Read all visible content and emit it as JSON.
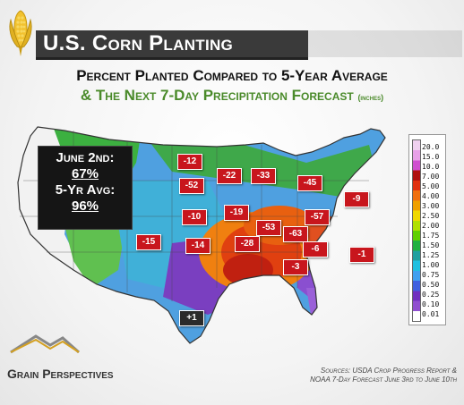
{
  "header": {
    "title": "U.S. Corn Planting",
    "subtitle_line1": "Percent Planted Compared to 5-Year Average",
    "subtitle_line2": "& The Next 7-Day Precipitation Forecast",
    "subtitle_unit": "(inches)"
  },
  "infobox": {
    "label1": "June 2nd:",
    "value1": "67%",
    "label2": "5-Yr Avg:",
    "value2": "96%"
  },
  "state_values": [
    {
      "value": "-12",
      "style": "red"
    },
    {
      "value": "-22",
      "style": "red"
    },
    {
      "value": "-33",
      "style": "red"
    },
    {
      "value": "-45",
      "style": "red"
    },
    {
      "value": "-52",
      "style": "red"
    },
    {
      "value": "-9",
      "style": "red"
    },
    {
      "value": "-10",
      "style": "red"
    },
    {
      "value": "-19",
      "style": "red"
    },
    {
      "value": "-57",
      "style": "red"
    },
    {
      "value": "-53",
      "style": "red"
    },
    {
      "value": "-63",
      "style": "red"
    },
    {
      "value": "-15",
      "style": "red"
    },
    {
      "value": "-14",
      "style": "red"
    },
    {
      "value": "-28",
      "style": "red"
    },
    {
      "value": "-6",
      "style": "red"
    },
    {
      "value": "-1",
      "style": "red"
    },
    {
      "value": "-3",
      "style": "red"
    },
    {
      "value": "+1",
      "style": "dark"
    }
  ],
  "legend": {
    "labels": [
      "20.0",
      "15.0",
      "10.0",
      "7.00",
      "5.00",
      "4.00",
      "3.00",
      "2.50",
      "2.00",
      "1.75",
      "1.50",
      "1.25",
      "1.00",
      "0.75",
      "0.50",
      "0.25",
      "0.10",
      "0.01"
    ],
    "colors": [
      "#f0d0f0",
      "#e8a0e8",
      "#d050d0",
      "#b01010",
      "#e03010",
      "#f07010",
      "#f0a000",
      "#f0d800",
      "#b0e000",
      "#60d000",
      "#20b040",
      "#20a0a0",
      "#20c0e0",
      "#40a0f0",
      "#4060e0",
      "#7030c0",
      "#9050d0",
      "#ffffff"
    ]
  },
  "footer": {
    "brand": "Grain Perspectives",
    "sources_line1": "Sources: USDA Crop Progress Report &",
    "sources_line2": "NOAA 7-Day Forecast  June 3rd to June 10th"
  }
}
